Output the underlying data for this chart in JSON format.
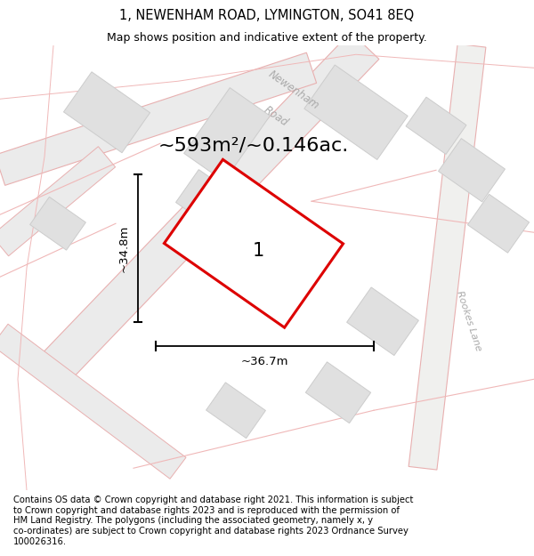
{
  "title": "1, NEWENHAM ROAD, LYMINGTON, SO41 8EQ",
  "subtitle": "Map shows position and indicative extent of the property.",
  "area_text": "~593m²/~0.146ac.",
  "dim_width": "~36.7m",
  "dim_height": "~34.8m",
  "property_label": "1",
  "footer": "Contains OS data © Crown copyright and database right 2021. This information is subject\nto Crown copyright and database rights 2023 and is reproduced with the permission of\nHM Land Registry. The polygons (including the associated geometry, namely x, y\nco-ordinates) are subject to Crown copyright and database rights 2023 Ordnance Survey\n100026316.",
  "map_bg": "#f9f9f9",
  "road_color": "#f0b8b8",
  "road_fill": "#eeeeee",
  "building_color": "#e0e0e0",
  "building_edge": "#cccccc",
  "polygon_color": "#dd0000",
  "title_fontsize": 10.5,
  "subtitle_fontsize": 9,
  "area_fontsize": 16,
  "dim_fontsize": 9.5,
  "label_fontsize": 15,
  "footer_fontsize": 7.2,
  "road_label_color": "#aaaaaa",
  "road_label_fontsize": 8.5
}
